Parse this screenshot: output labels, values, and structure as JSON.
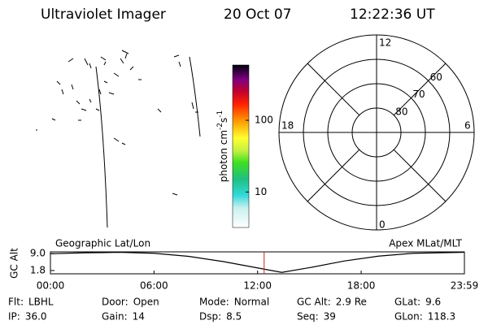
{
  "header": {
    "instrument": "Ultraviolet Imager",
    "date": "20 Oct 07",
    "time": "12:22:36 UT"
  },
  "colorbar": {
    "label": [
      "photon cm",
      "-2",
      "s",
      "-1"
    ],
    "range": [
      3.2,
      590
    ],
    "ticks": [
      10,
      100
    ],
    "log": true
  },
  "polar": {
    "outer_lat": 50,
    "circles": [
      80,
      70,
      60
    ],
    "mlt_labels": {
      "top": "12",
      "right": "6",
      "bottom": "0",
      "left": "18"
    }
  },
  "chart_data": {
    "type": "line",
    "left_label": "Geographic Lat/Lon",
    "right_label": "Apex MLat/MLT",
    "ylabel": "GC Alt",
    "x": [
      0,
      2,
      4,
      6,
      8,
      10,
      12,
      13.4,
      15,
      17,
      19,
      21,
      23.98
    ],
    "values": [
      8.9,
      9.3,
      9.5,
      9.1,
      7.8,
      5.6,
      2.9,
      1.0,
      3.0,
      5.8,
      7.9,
      9.1,
      9.5
    ],
    "color": "#000000",
    "marker_x": 12.38,
    "marker_color": "#d02020",
    "xlim": [
      0,
      23.98
    ],
    "xticks": [
      {
        "value": 0,
        "label": "00:00"
      },
      {
        "value": 6,
        "label": "06:00"
      },
      {
        "value": 12,
        "label": "12:00"
      },
      {
        "value": 18,
        "label": "18:00"
      },
      {
        "value": 23.98,
        "label": "23:59"
      }
    ],
    "ylim": [
      0.4,
      9.7
    ],
    "yticks": [
      {
        "value": 9.0,
        "label": "9.0"
      },
      {
        "value": 1.8,
        "label": "1.8"
      }
    ]
  },
  "footer": [
    [
      {
        "label": "Flt:",
        "value": "LBHL"
      },
      {
        "label": "Door:",
        "value": "Open"
      },
      {
        "label": "Mode:",
        "value": "Normal"
      },
      {
        "label": "GC Alt:",
        "value": "2.9 Re"
      },
      {
        "label": "GLat:",
        "value": "9.6"
      }
    ],
    [
      {
        "label": "IP:",
        "value": "36.0"
      },
      {
        "label": "Gain:",
        "value": "14"
      },
      {
        "label": "Dsp:",
        "value": "8.5"
      },
      {
        "label": "Seq:",
        "value": "39"
      },
      {
        "label": "GLon:",
        "value": "118.3"
      }
    ]
  ]
}
